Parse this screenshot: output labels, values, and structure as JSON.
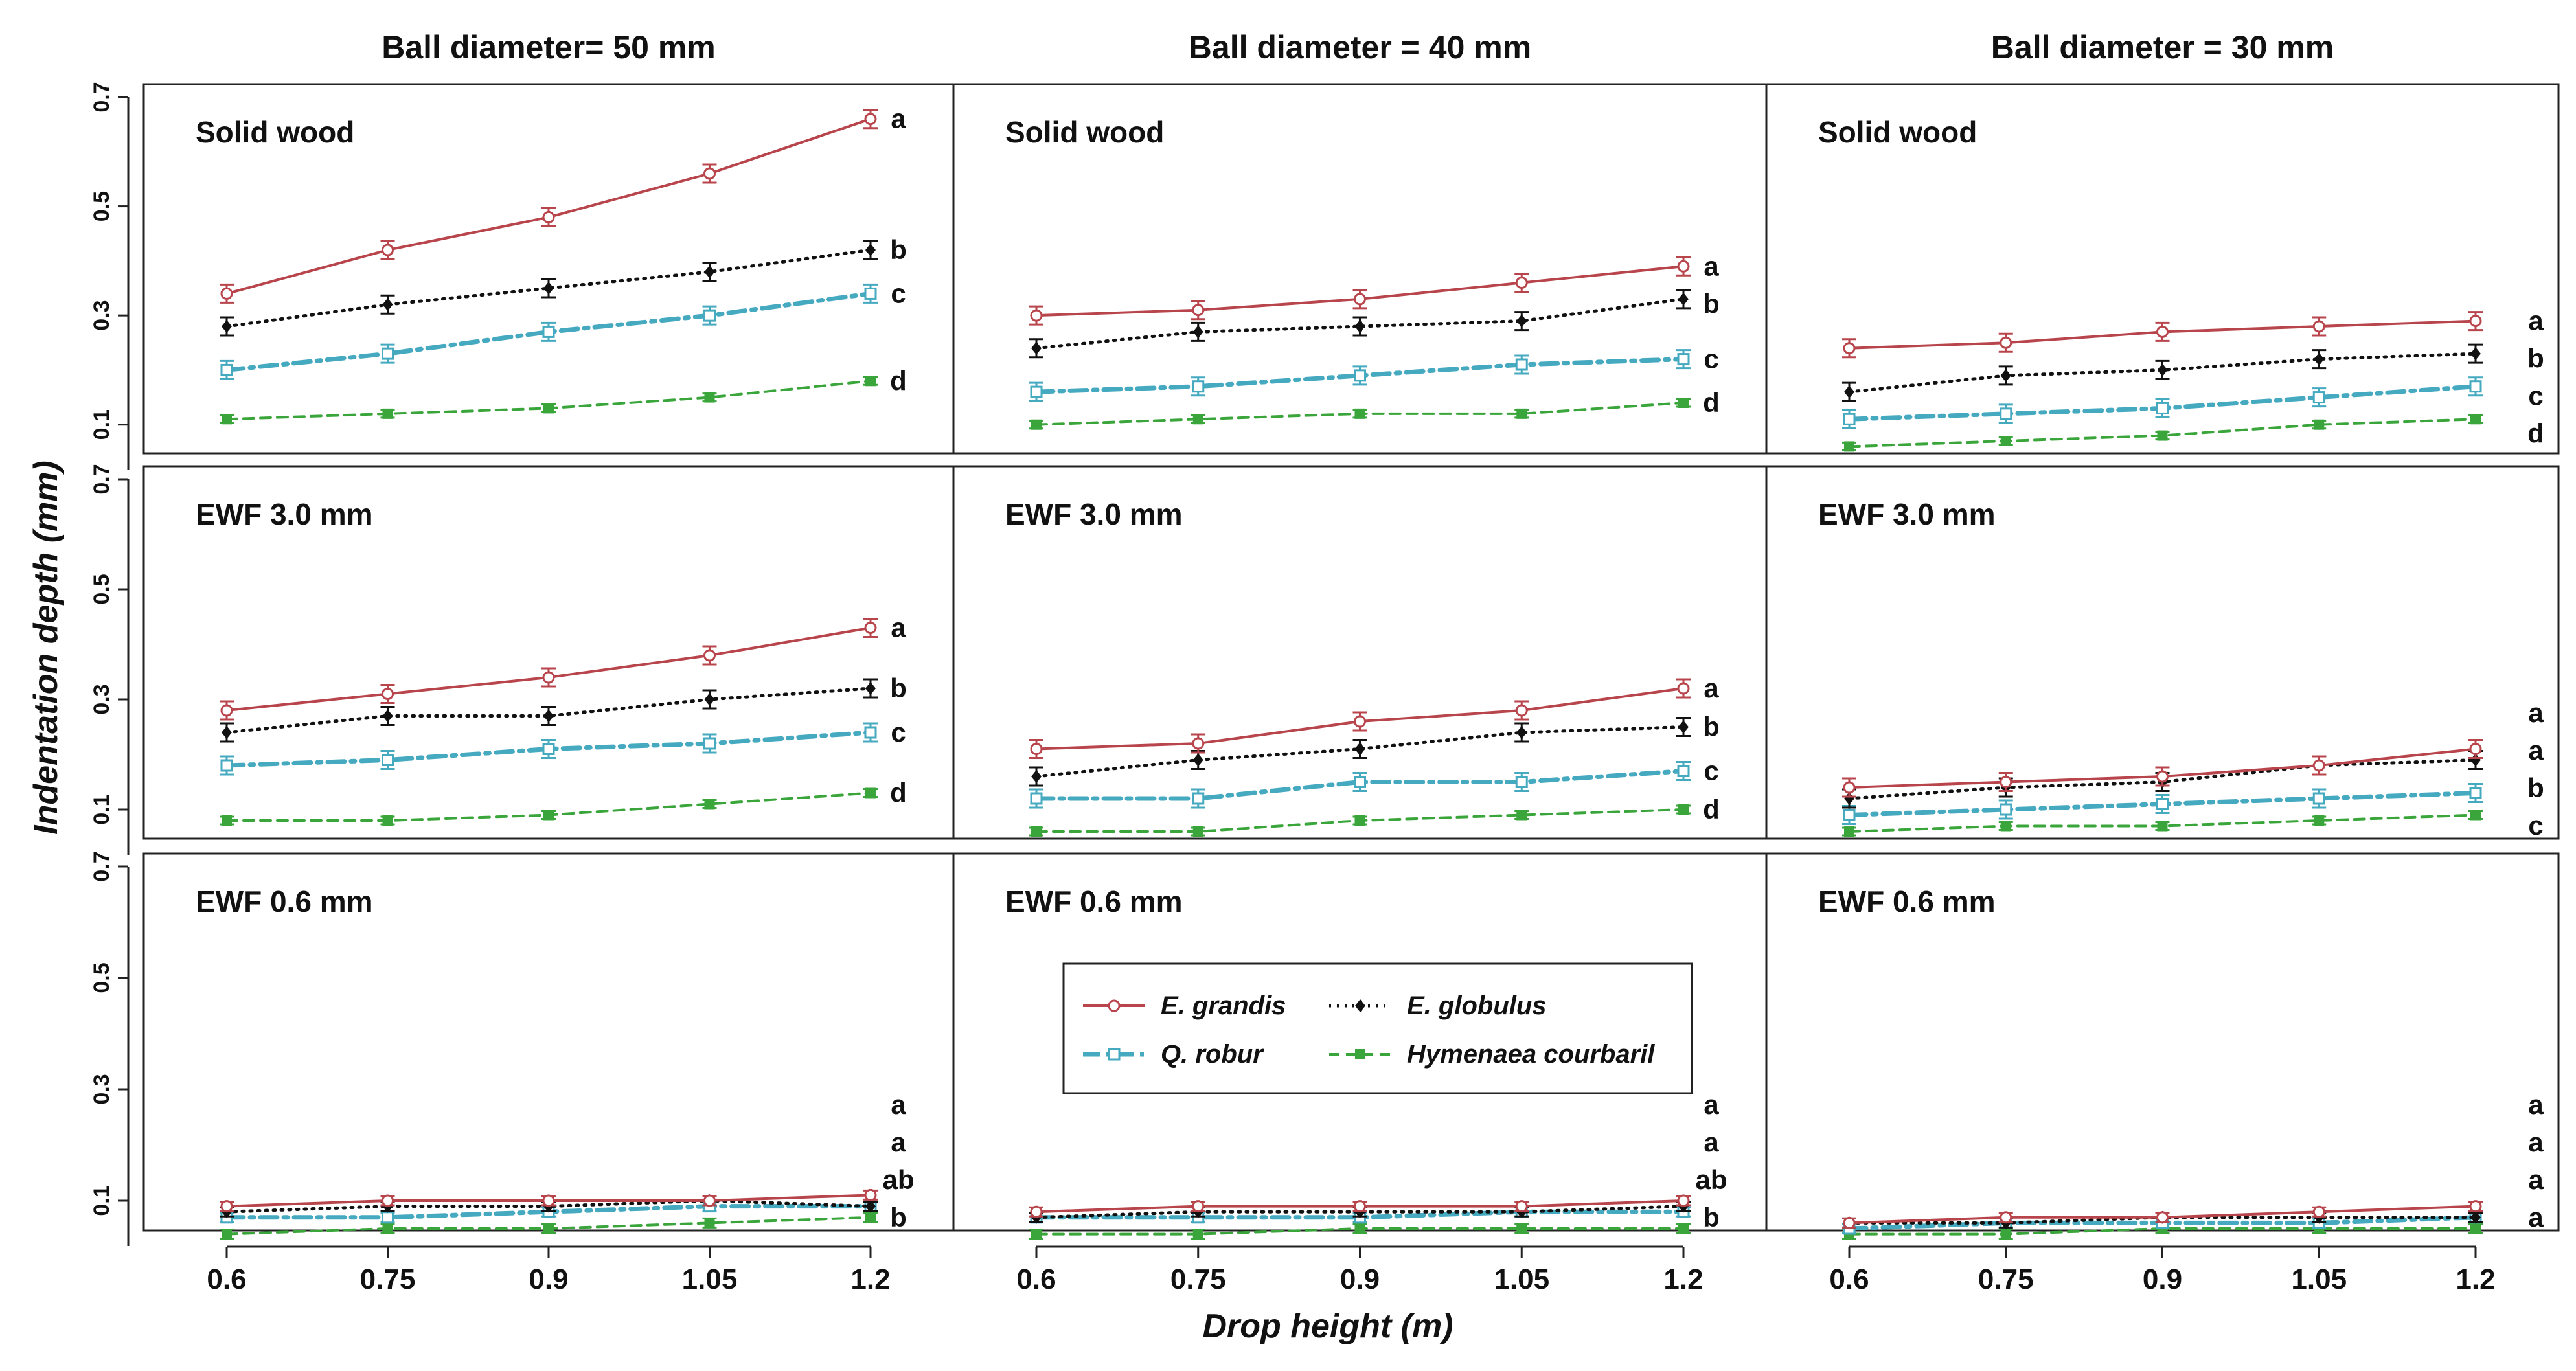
{
  "chart_data": {
    "type": "line",
    "ylabel": "Indentation depth (mm)",
    "xlabel": "Drop height (m)",
    "x": [
      0.6,
      0.75,
      0.9,
      1.05,
      1.2
    ],
    "x_tick_labels": [
      "0.6",
      "0.75",
      "0.9",
      "1.05",
      "1.2"
    ],
    "y_tick_labels": [
      "0.1",
      "0.3",
      "0.5",
      "0.7"
    ],
    "ylim": [
      0.0,
      0.72
    ],
    "columns": [
      "Ball diameter= 50 mm",
      "Ball diameter = 40 mm",
      "Ball diameter = 30 mm"
    ],
    "rows": [
      "Solid wood",
      "EWF 3.0 mm",
      "EWF 0.6 mm"
    ],
    "legend": [
      {
        "key": "grandis",
        "label": "E. grandis",
        "color": "#b8454c",
        "marker": "circle-open",
        "line": "solid"
      },
      {
        "key": "globulus",
        "label": "E. globulus",
        "color": "#111111",
        "marker": "diamond-filled",
        "line": "dotted"
      },
      {
        "key": "robur",
        "label": "Q. robur",
        "color": "#45a9c0",
        "marker": "square-open",
        "line": "dashdot"
      },
      {
        "key": "courbaril",
        "label": "Hymenaea courbaril",
        "color": "#3aa53a",
        "marker": "square-filled",
        "line": "dashed"
      }
    ],
    "panels": [
      {
        "row": 0,
        "col": 0,
        "letters": [
          "a",
          "b",
          "c",
          "d"
        ],
        "series": {
          "grandis": [
            0.34,
            0.42,
            0.48,
            0.56,
            0.66
          ],
          "globulus": [
            0.28,
            0.32,
            0.35,
            0.38,
            0.42
          ],
          "robur": [
            0.2,
            0.23,
            0.27,
            0.3,
            0.34
          ],
          "courbaril": [
            0.11,
            0.12,
            0.13,
            0.15,
            0.18
          ]
        }
      },
      {
        "row": 0,
        "col": 1,
        "letters": [
          "a",
          "b",
          "c",
          "d"
        ],
        "series": {
          "grandis": [
            0.3,
            0.31,
            0.33,
            0.36,
            0.39
          ],
          "globulus": [
            0.24,
            0.27,
            0.28,
            0.29,
            0.33
          ],
          "robur": [
            0.16,
            0.17,
            0.19,
            0.21,
            0.22
          ],
          "courbaril": [
            0.1,
            0.11,
            0.12,
            0.12,
            0.14
          ]
        }
      },
      {
        "row": 0,
        "col": 2,
        "letters": [
          "a",
          "b",
          "c",
          "d"
        ],
        "series": {
          "grandis": [
            0.24,
            0.25,
            0.27,
            0.28,
            0.29
          ],
          "globulus": [
            0.16,
            0.19,
            0.2,
            0.22,
            0.23
          ],
          "robur": [
            0.11,
            0.12,
            0.13,
            0.15,
            0.17
          ],
          "courbaril": [
            0.06,
            0.07,
            0.08,
            0.1,
            0.11
          ]
        }
      },
      {
        "row": 1,
        "col": 0,
        "letters": [
          "a",
          "b",
          "c",
          "d"
        ],
        "series": {
          "grandis": [
            0.28,
            0.31,
            0.34,
            0.38,
            0.43
          ],
          "globulus": [
            0.24,
            0.27,
            0.27,
            0.3,
            0.32
          ],
          "robur": [
            0.18,
            0.19,
            0.21,
            0.22,
            0.24
          ],
          "courbaril": [
            0.08,
            0.08,
            0.09,
            0.11,
            0.13
          ]
        }
      },
      {
        "row": 1,
        "col": 1,
        "letters": [
          "a",
          "b",
          "c",
          "d"
        ],
        "series": {
          "grandis": [
            0.21,
            0.22,
            0.26,
            0.28,
            0.32
          ],
          "globulus": [
            0.16,
            0.19,
            0.21,
            0.24,
            0.25
          ],
          "robur": [
            0.12,
            0.12,
            0.15,
            0.15,
            0.17
          ],
          "courbaril": [
            0.06,
            0.06,
            0.08,
            0.09,
            0.1
          ]
        }
      },
      {
        "row": 1,
        "col": 2,
        "letters": [
          "a",
          "a",
          "b",
          "c"
        ],
        "series": {
          "grandis": [
            0.14,
            0.15,
            0.16,
            0.18,
            0.21
          ],
          "globulus": [
            0.12,
            0.14,
            0.15,
            0.18,
            0.19
          ],
          "robur": [
            0.09,
            0.1,
            0.11,
            0.12,
            0.13
          ],
          "courbaril": [
            0.06,
            0.07,
            0.07,
            0.08,
            0.09
          ]
        }
      },
      {
        "row": 2,
        "col": 0,
        "letters": [
          "a",
          "a",
          "ab",
          "b"
        ],
        "series": {
          "grandis": [
            0.09,
            0.1,
            0.1,
            0.1,
            0.11
          ],
          "globulus": [
            0.08,
            0.09,
            0.09,
            0.1,
            0.09
          ],
          "robur": [
            0.07,
            0.07,
            0.08,
            0.09,
            0.09
          ],
          "courbaril": [
            0.04,
            0.05,
            0.05,
            0.06,
            0.07
          ]
        }
      },
      {
        "row": 2,
        "col": 1,
        "letters": [
          "a",
          "a",
          "ab",
          "b"
        ],
        "series": {
          "grandis": [
            0.08,
            0.09,
            0.09,
            0.09,
            0.1
          ],
          "globulus": [
            0.07,
            0.08,
            0.08,
            0.08,
            0.09
          ],
          "robur": [
            0.07,
            0.07,
            0.07,
            0.08,
            0.08
          ],
          "courbaril": [
            0.04,
            0.04,
            0.05,
            0.05,
            0.05
          ]
        }
      },
      {
        "row": 2,
        "col": 2,
        "letters": [
          "a",
          "a",
          "a",
          "a"
        ],
        "series": {
          "grandis": [
            0.06,
            0.07,
            0.07,
            0.08,
            0.09
          ],
          "globulus": [
            0.06,
            0.06,
            0.07,
            0.07,
            0.07
          ],
          "robur": [
            0.05,
            0.06,
            0.06,
            0.06,
            0.07
          ],
          "courbaril": [
            0.04,
            0.04,
            0.05,
            0.05,
            0.05
          ]
        }
      }
    ]
  }
}
